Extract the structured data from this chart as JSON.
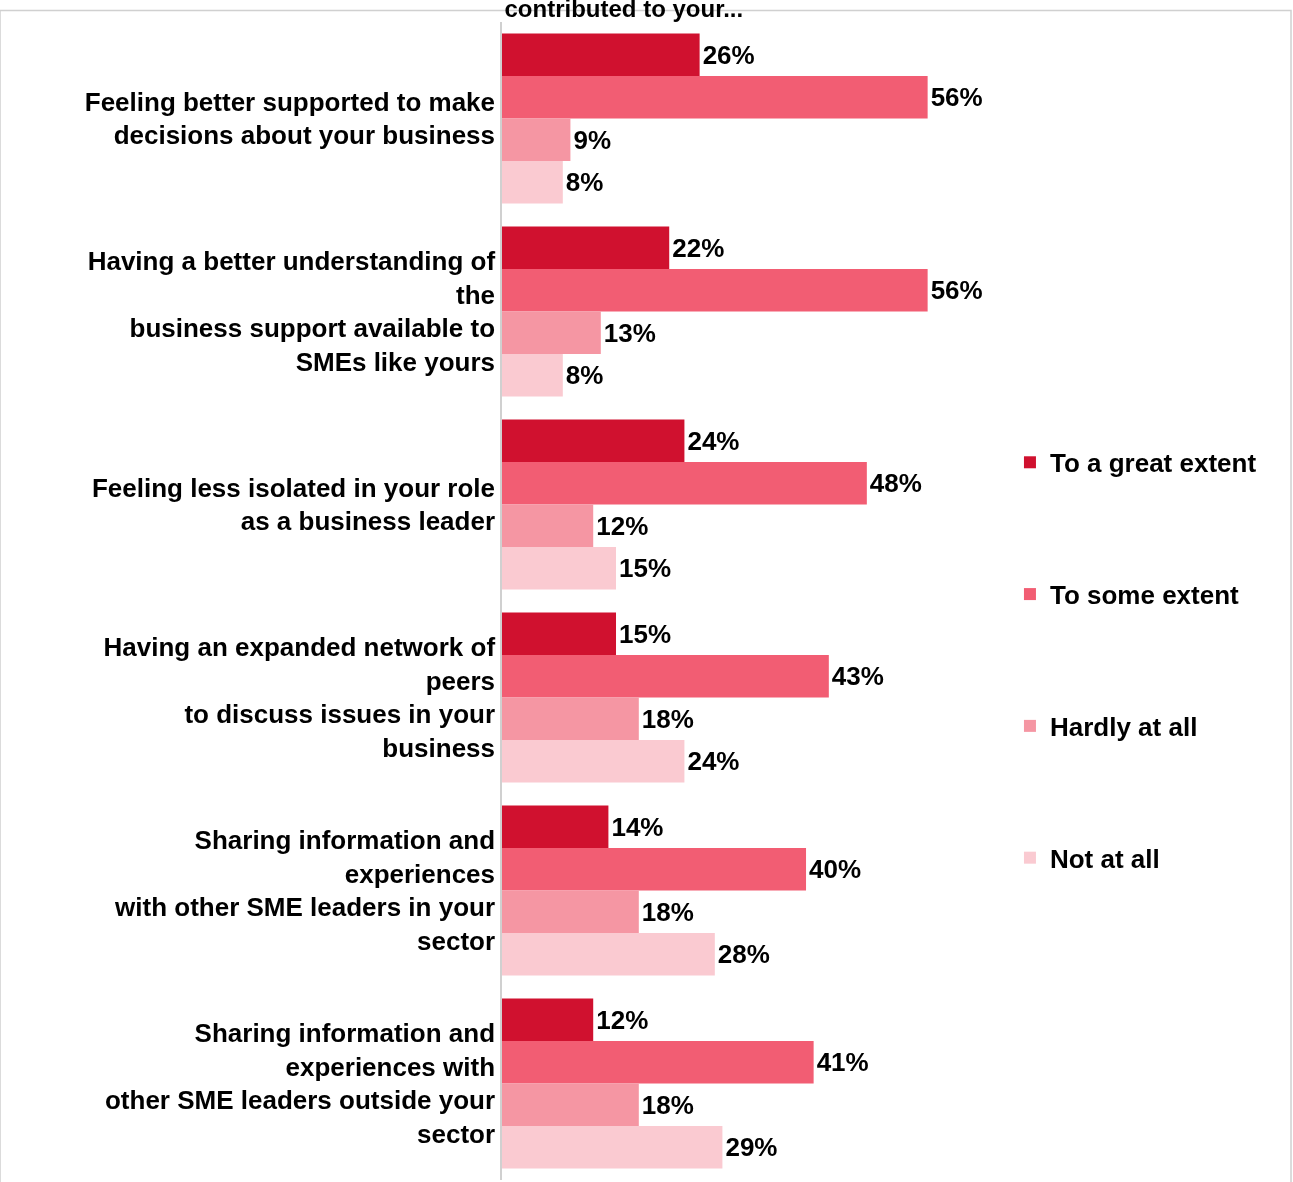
{
  "chart_data": {
    "type": "bar",
    "orientation": "horizontal",
    "title": "contributed to your...",
    "categories": [
      "Feeling better supported to make\ndecisions about your business",
      "Having a better understanding of\nthe\nbusiness support available to\nSMEs like yours",
      "Feeling less isolated in your role\nas a business leader",
      "Having an expanded network of\npeers\nto discuss issues in your\nbusiness",
      "Sharing information and\nexperiences\nwith other SME leaders in your\nsector",
      "Sharing information and\nexperiences with\nother SME leaders outside your\nsector"
    ],
    "series": [
      {
        "name": "To a great extent",
        "color": "#d0112f",
        "values": [
          26,
          22,
          24,
          15,
          14,
          12
        ],
        "value_labels": [
          "26%",
          "22%",
          "24%",
          "15%",
          "14%",
          "12%"
        ]
      },
      {
        "name": "To some extent",
        "color": "#f25d73",
        "values": [
          56,
          56,
          48,
          43,
          40,
          41
        ],
        "value_labels": [
          "56%",
          "56%",
          "48%",
          "43%",
          "40%",
          "41%"
        ]
      },
      {
        "name": "Hardly at all",
        "color": "#f596a3",
        "values": [
          9,
          13,
          12,
          18,
          18,
          18
        ],
        "value_labels": [
          "9%",
          "13%",
          "12%",
          "18%",
          "18%",
          "18%"
        ]
      },
      {
        "name": "Not at all",
        "color": "#facad1",
        "values": [
          8,
          8,
          15,
          24,
          28,
          29
        ],
        "value_labels": [
          "8%",
          "8%",
          "15%",
          "24%",
          "28%",
          "29%"
        ]
      }
    ],
    "legend": "right"
  }
}
